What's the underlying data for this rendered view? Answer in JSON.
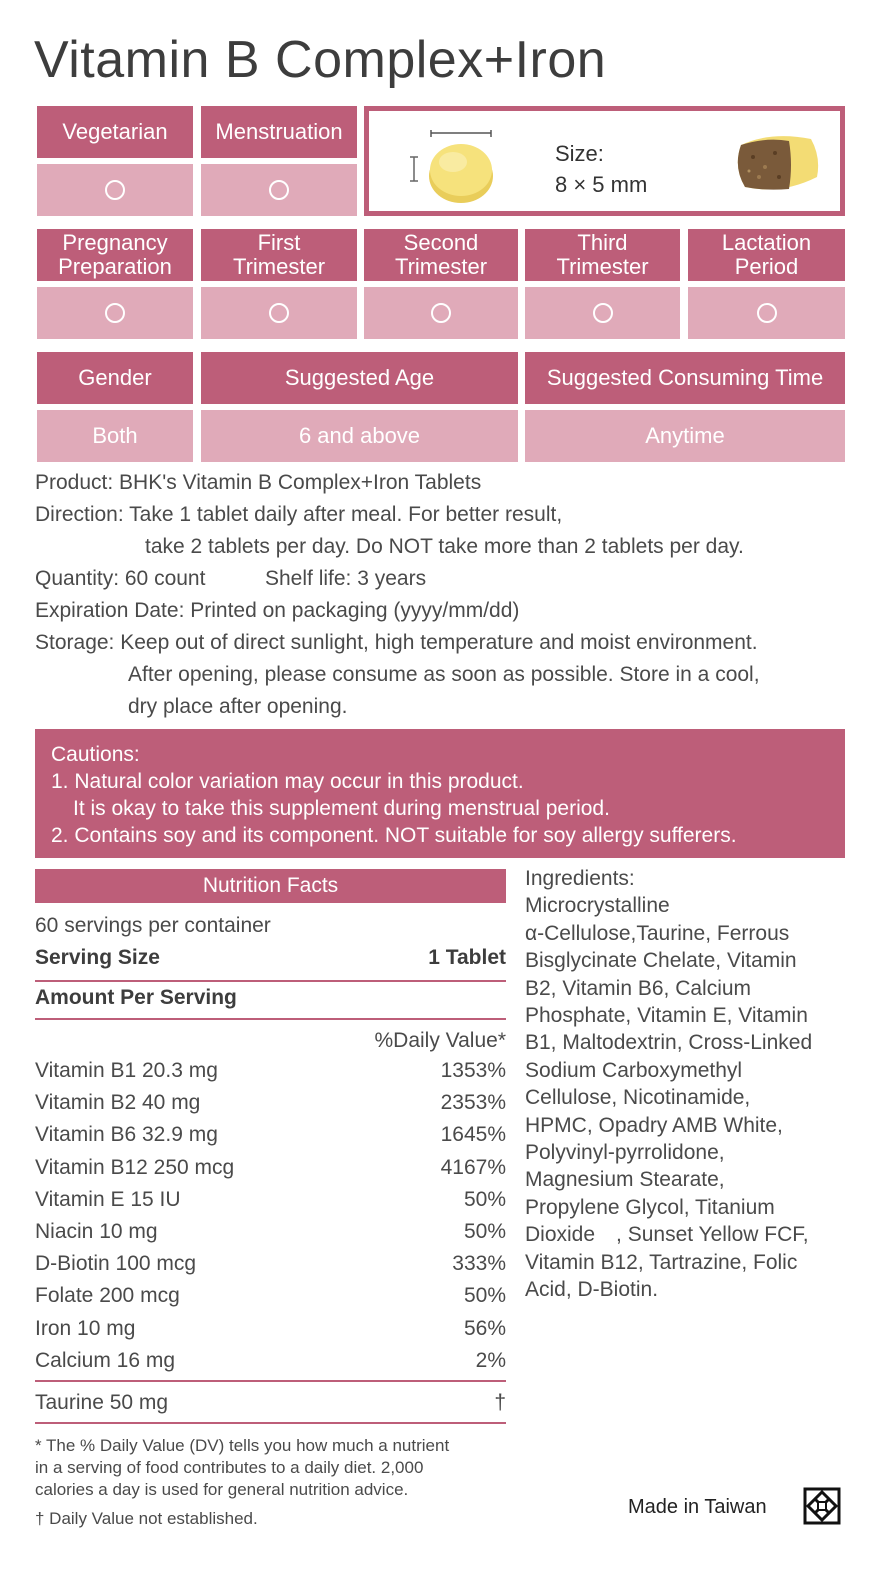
{
  "title": "Vitamin B Complex+Iron",
  "suitability_top": [
    {
      "label": "Vegetarian",
      "mark": "○"
    },
    {
      "label": "Menstruation",
      "mark": "○"
    }
  ],
  "size": {
    "label": "Size:",
    "value": "8 × 5 mm"
  },
  "suitability_pregnancy": [
    {
      "label_line1": "Pregnancy",
      "label_line2": "Preparation",
      "mark": "○"
    },
    {
      "label_line1": "First",
      "label_line2": "Trimester",
      "mark": "○"
    },
    {
      "label_line1": "Second",
      "label_line2": "Trimester",
      "mark": "○"
    },
    {
      "label_line1": "Third",
      "label_line2": "Trimester",
      "mark": "○"
    },
    {
      "label_line1": "Lactation",
      "label_line2": "Period",
      "mark": "○"
    }
  ],
  "usage": {
    "gender_label": "Gender",
    "gender_value": "Both",
    "age_label": "Suggested Age",
    "age_value": "6 and above",
    "time_label": "Suggested Consuming Time",
    "time_value": "Anytime"
  },
  "product_info": {
    "product": "Product: BHK's Vitamin B Complex+Iron Tablets",
    "direction_1": "Direction: Take 1 tablet daily after meal. For better result,",
    "direction_2": "take 2 tablets per day. Do NOT take more than 2 tablets per day.",
    "quantity": "Quantity: 60 count",
    "shelf_life": "Shelf life: 3 years",
    "expiration": "Expiration Date: Printed on packaging (yyyy/mm/dd)",
    "storage_1": "Storage: Keep out of direct sunlight, high temperature and moist environment.",
    "storage_2": "After opening, please consume as soon as possible. Store in a cool,",
    "storage_3": "dry place after opening."
  },
  "cautions": {
    "heading": "Cautions:",
    "line1": "1. Natural color variation may occur in this product.",
    "line2": "It is okay to take this supplement during menstrual period.",
    "line3": "2. Contains soy and its component. NOT suitable for soy allergy sufferers."
  },
  "nutrition": {
    "header": "Nutrition Facts",
    "servings": "60 servings per container",
    "serving_size_label": "Serving Size",
    "serving_size_value": "1 Tablet",
    "amount_label": "Amount Per Serving",
    "dv_label": "%Daily Value*",
    "rows": [
      {
        "name": "Vitamin B1 20.3 mg",
        "dv": "1353%"
      },
      {
        "name": "Vitamin B2 40 mg",
        "dv": "2353%"
      },
      {
        "name": "Vitamin B6 32.9 mg",
        "dv": "1645%"
      },
      {
        "name": "Vitamin B12 250 mcg",
        "dv": "4167%"
      },
      {
        "name": "Vitamin E 15 IU",
        "dv": "50%"
      },
      {
        "name": "Niacin 10 mg",
        "dv": "50%"
      },
      {
        "name": "D-Biotin 100 mcg",
        "dv": "333%"
      },
      {
        "name": "Folate 200 mcg",
        "dv": "50%"
      },
      {
        "name": "Iron 10 mg",
        "dv": "56%"
      },
      {
        "name": "Calcium 16 mg",
        "dv": "2%"
      }
    ],
    "extra_row": {
      "name": "Taurine 50 mg",
      "dv": "†"
    },
    "footnote_1": "* The % Daily Value (DV) tells you how much a nutrient",
    "footnote_2": "in a serving of food contributes to a daily diet. 2,000",
    "footnote_3": "calories a day is used for general nutrition advice.",
    "footnote_dagger": "† Daily Value not established."
  },
  "ingredients": {
    "heading": "Ingredients:",
    "lines": [
      "Microcrystalline",
      "α-Cellulose,Taurine, Ferrous",
      "Bisglycinate Chelate, Vitamin",
      "B2, Vitamin B6, Calcium",
      "Phosphate, Vitamin E, Vitamin",
      "B1, Maltodextrin, Cross-Linked",
      "Sodium Carboxymethyl",
      "Cellulose, Nicotinamide,",
      "HPMC, Opadry AMB White,",
      "Polyvinyl-pyrrolidone,",
      "Magnesium Stearate,",
      "Propylene Glycol, Titanium",
      "Dioxide　, Sunset Yellow FCF,",
      "Vitamin B12, Tartrazine, Folic",
      "Acid, D-Biotin."
    ]
  },
  "made_in": "Made in Taiwan",
  "icons": {
    "recycle": "recycle-icon",
    "tablet": "tablet-image",
    "tablet_cut": "tablet-cross-section-image"
  },
  "colors": {
    "accent": "#bd5e79",
    "accent_light": "#e0aab9"
  }
}
